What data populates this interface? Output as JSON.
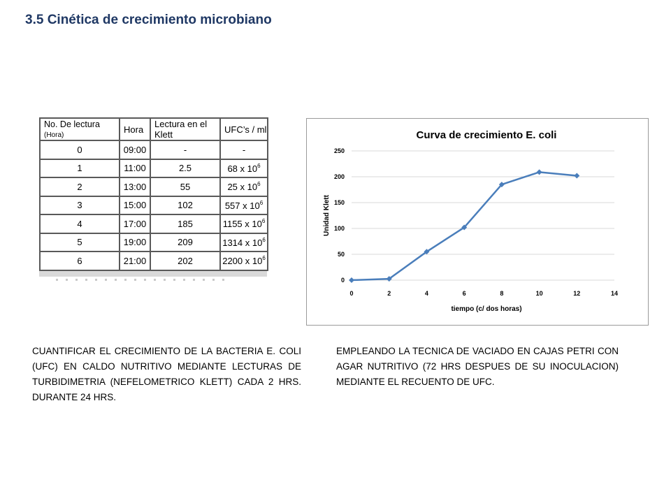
{
  "title": "3.5 Cinética de crecimiento microbiano",
  "table": {
    "headers": {
      "lectura": "No. De lectura",
      "lectura_unit": "(Hora)",
      "hora": "Hora",
      "klett": "Lectura en el Klett",
      "ufc": "UFC’s / ml"
    },
    "rows": [
      {
        "n": "0",
        "hora": "09:00",
        "klett": "-",
        "ufc_base": "-",
        "ufc_exp": ""
      },
      {
        "n": "1",
        "hora": "11:00",
        "klett": "2.5",
        "ufc_base": "68 x 10",
        "ufc_exp": "6"
      },
      {
        "n": "2",
        "hora": "13:00",
        "klett": "55",
        "ufc_base": "25 x 10",
        "ufc_exp": "6"
      },
      {
        "n": "3",
        "hora": "15:00",
        "klett": "102",
        "ufc_base": "557 x 10",
        "ufc_exp": "6"
      },
      {
        "n": "4",
        "hora": "17:00",
        "klett": "185",
        "ufc_base": "1155 x 10",
        "ufc_exp": "6"
      },
      {
        "n": "5",
        "hora": "19:00",
        "klett": "209",
        "ufc_base": "1314 x 10",
        "ufc_exp": "6"
      },
      {
        "n": "6",
        "hora": "21:00",
        "klett": "202",
        "ufc_base": "2200 x 10",
        "ufc_exp": "6"
      }
    ]
  },
  "chart_data": {
    "type": "line",
    "title": "Curva de crecimiento E. coli",
    "xlabel": "tiempo (c/ dos horas)",
    "ylabel": "Unidad Klett",
    "x": [
      0,
      2,
      4,
      6,
      8,
      10,
      12
    ],
    "series": [
      {
        "values": [
          0,
          2.5,
          55,
          102,
          185,
          209,
          202
        ]
      }
    ],
    "xlim": [
      0,
      14
    ],
    "ylim": [
      0,
      250
    ],
    "xticks": [
      0,
      2,
      4,
      6,
      8,
      10,
      12,
      14
    ],
    "yticks": [
      0,
      50,
      100,
      150,
      200,
      250
    ],
    "grid": "horizontal",
    "legend": "none",
    "line_color": "#4a7ebb",
    "grid_color": "#d9d9d9"
  },
  "paragraphs": {
    "left": "CUANTIFICAR EL CRECIMIENTO DE LA BACTERIA E. COLI (UFC) EN CALDO NUTRITIVO MEDIANTE LECTURAS DE TURBIDIMETRIA (NEFELOMETRICO KLETT) CADA 2 HRS. DURANTE 24 HRS.",
    "right": "EMPLEANDO LA TECNICA DE VACIADO EN CAJAS PETRI CON AGAR NUTRITIVO (72 HRS DESPUES DE SU INOCULACION) MEDIANTE EL RECUENTO DE UFC."
  },
  "colors": {
    "title": "#1f3864",
    "table_border": "#595959"
  }
}
